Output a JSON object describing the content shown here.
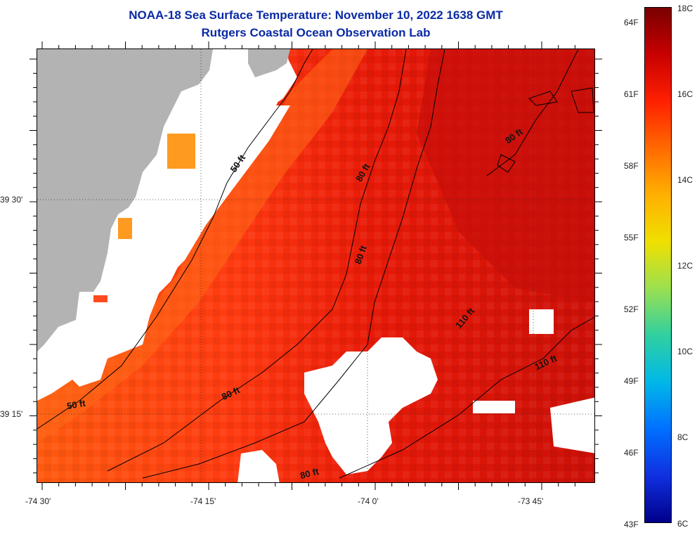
{
  "title_line1": "NOAA-18 Sea Surface Temperature:  November 10, 2022 1638 GMT",
  "title_line2": "Rutgers Coastal Ocean Observation Lab",
  "lon_labels": [
    "-74 30'",
    "-74 15'",
    "-74 0'",
    "-73 45'"
  ],
  "lat_labels": [
    "39 30'",
    "39 15'"
  ],
  "depth_contours": [
    "50 ft",
    "50 ft",
    "80 ft",
    "80 ft",
    "80 ft",
    "80 ft",
    "80 ft",
    "110 ft",
    "110 ft"
  ],
  "colorbar": {
    "fahrenheit": [
      "64F",
      "61F",
      "58F",
      "55F",
      "52F",
      "49F",
      "46F",
      "43F"
    ],
    "celsius": [
      "18C",
      "16C",
      "14C",
      "12C",
      "10C",
      "8C",
      "6C"
    ],
    "colors": [
      "#7a0000",
      "#c80000",
      "#ff2000",
      "#ff6a00",
      "#ffb000",
      "#f0e000",
      "#9be050",
      "#30d0a0",
      "#00b8e8",
      "#0070ff",
      "#1030e0",
      "#00008a"
    ]
  },
  "colors": {
    "land": "#b3b3b3",
    "cloud": "#ffffff",
    "title": "#0a2aa5"
  }
}
